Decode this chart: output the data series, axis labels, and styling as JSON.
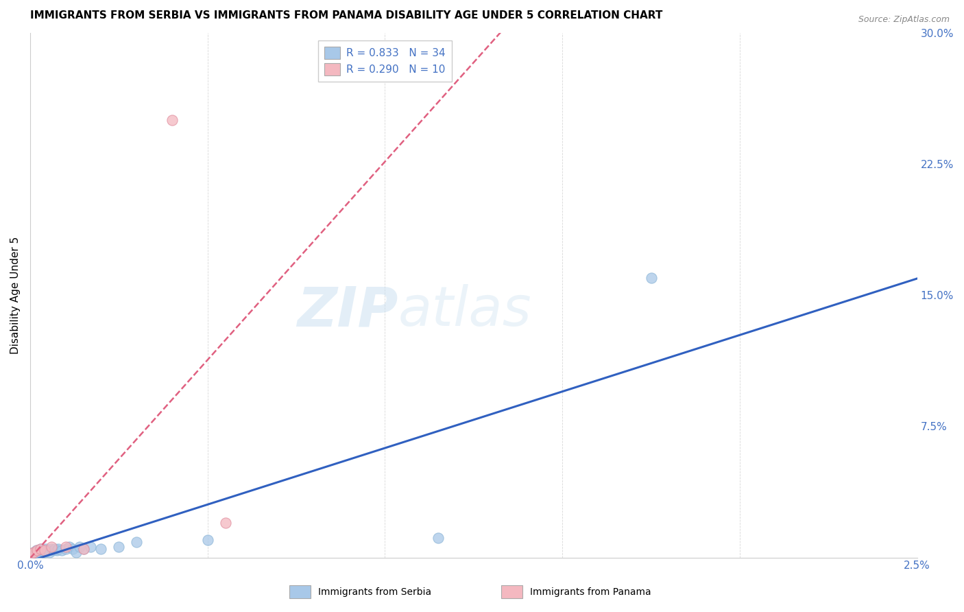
{
  "title": "IMMIGRANTS FROM SERBIA VS IMMIGRANTS FROM PANAMA DISABILITY AGE UNDER 5 CORRELATION CHART",
  "source": "Source: ZipAtlas.com",
  "xlabel": "",
  "ylabel": "Disability Age Under 5",
  "serbia_label": "Immigrants from Serbia",
  "panama_label": "Immigrants from Panama",
  "serbia_R": "0.833",
  "serbia_N": "34",
  "panama_R": "0.290",
  "panama_N": "10",
  "serbia_color": "#a8c8e8",
  "panama_color": "#f4b8c0",
  "serbia_line_color": "#3060c0",
  "panama_line_color": "#e06080",
  "right_axis_color": "#4472c4",
  "xlim": [
    0.0,
    0.025
  ],
  "ylim": [
    0.0,
    0.3
  ],
  "xticks": [
    0.0,
    0.005,
    0.01,
    0.015,
    0.02,
    0.025
  ],
  "xticklabels": [
    "0.0%",
    "",
    "",
    "",
    "",
    "2.5%"
  ],
  "yticks_right": [
    0.075,
    0.15,
    0.225,
    0.3
  ],
  "ytick_labels_right": [
    "7.5%",
    "15.0%",
    "22.5%",
    "30.0%"
  ],
  "serbia_x": [
    5e-05,
    8e-05,
    0.0001,
    0.00012,
    0.00015,
    0.00018,
    0.0002,
    0.00022,
    0.00025,
    0.0003,
    0.00035,
    0.0004,
    0.00045,
    0.0005,
    0.00055,
    0.0006,
    0.00065,
    0.0007,
    0.00075,
    0.0008,
    0.0009,
    0.001,
    0.0011,
    0.0012,
    0.0013,
    0.0014,
    0.0015,
    0.0017,
    0.002,
    0.0025,
    0.003,
    0.005,
    0.0115,
    0.0175
  ],
  "serbia_y": [
    0.002,
    0.001,
    0.003,
    0.002,
    0.003,
    0.004,
    0.003,
    0.004,
    0.002,
    0.005,
    0.004,
    0.003,
    0.005,
    0.004,
    0.003,
    0.005,
    0.004,
    0.005,
    0.004,
    0.005,
    0.004,
    0.005,
    0.006,
    0.005,
    0.003,
    0.006,
    0.005,
    0.006,
    0.005,
    0.006,
    0.009,
    0.01,
    0.011,
    0.16
  ],
  "panama_x": [
    5e-05,
    0.0001,
    0.0002,
    0.0003,
    0.0004,
    0.0006,
    0.001,
    0.0015,
    0.004,
    0.0055
  ],
  "panama_y": [
    0.002,
    0.003,
    0.004,
    0.005,
    0.004,
    0.006,
    0.006,
    0.005,
    0.25,
    0.02
  ],
  "watermark_zip": "ZIP",
  "watermark_atlas": "atlas",
  "background_color": "#ffffff",
  "grid_color": "#d8d8d8"
}
